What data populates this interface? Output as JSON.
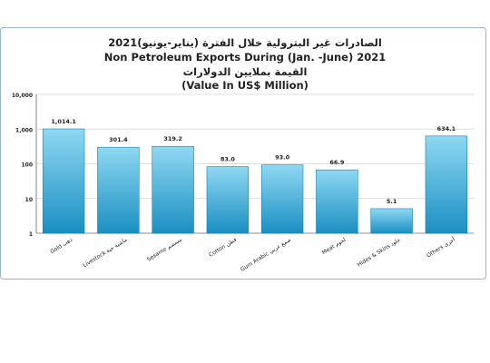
{
  "chart_data": {
    "type": "bar",
    "title_ar": "الصادرات غير البترولية خلال الفترة (يناير-يونيو)2021",
    "title_en": "Non Petroleum Exports During (Jan. -June) 2021",
    "subtitle_ar": "القيمة بملايين الدولارات",
    "subtitle_en": "(Value In US$  Million)",
    "scale": "log",
    "ylim": [
      1,
      10000
    ],
    "yticks": [
      "1",
      "10",
      "100",
      "1,000",
      "10,000"
    ],
    "categories": [
      "Gold ذهب",
      "Livestock ماشية حية",
      "Sesame سمسم",
      "Cotton قطن",
      "Gum Arabic صمغ عربي",
      "Meat لحوم",
      "Hides & Skins جلود",
      "Others أخرى"
    ],
    "values": [
      1014.1,
      301.4,
      319.2,
      83.0,
      93.0,
      66.9,
      5.1,
      634.1
    ],
    "value_labels": [
      "1,014.1",
      "301.4",
      "319.2",
      "83.0",
      "93.0",
      "66.9",
      "5.1",
      "634.1"
    ],
    "grid": true,
    "colors": {
      "bar_top": "#8fd8f2",
      "bar_bottom": "#1a8fc2",
      "bar_edge": "#1680b0"
    }
  }
}
